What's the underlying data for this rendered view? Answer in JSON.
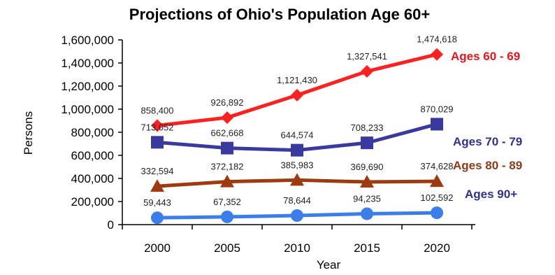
{
  "chart_data": {
    "type": "line",
    "title": "Projections of Ohio's Population Age 60+",
    "xlabel": "Year",
    "ylabel": "Persons",
    "x": [
      2000,
      2005,
      2010,
      2015,
      2020
    ],
    "x_tick_labels": [
      "2000",
      "2005",
      "2010",
      "2015",
      "2020"
    ],
    "ylim": [
      0,
      1600000
    ],
    "y_ticks": [
      0,
      200000,
      400000,
      600000,
      800000,
      1000000,
      1200000,
      1400000,
      1600000
    ],
    "y_tick_labels": [
      "0",
      "200,000",
      "400,000",
      "600,000",
      "800,000",
      "1,000,000",
      "1,200,000",
      "1,400,000",
      "1,600,000"
    ],
    "grid": false,
    "legend": "inline labels at right end of each series",
    "series": [
      {
        "name": "Ages 60 - 69",
        "values": [
          858400,
          926892,
          1121430,
          1327541,
          1474618
        ],
        "data_labels": [
          "858,400",
          "926,892",
          "1,121,430",
          "1,327,541",
          "1,474,618"
        ],
        "color": "#ff2020",
        "label_color": "#e8141e",
        "marker": "diamond"
      },
      {
        "name": "Ages 70 - 79",
        "values": [
          713052,
          662668,
          644574,
          708233,
          870029
        ],
        "data_labels": [
          "713,052",
          "662,668",
          "644,574",
          "708,233",
          "870,029"
        ],
        "color": "#3a3a9e",
        "label_color": "#2e3192",
        "marker": "square"
      },
      {
        "name": "Ages 80 - 89",
        "values": [
          332594,
          372182,
          385983,
          369690,
          374628
        ],
        "data_labels": [
          "332,594",
          "372,182",
          "385,983",
          "369,690",
          "374,628"
        ],
        "color": "#9e3a10",
        "label_color": "#8b3a1a",
        "marker": "triangle"
      },
      {
        "name": "Ages 90+",
        "values": [
          59443,
          67352,
          78644,
          94235,
          102592
        ],
        "data_labels": [
          "59,443",
          "67,352",
          "78,644",
          "94,235",
          "102,592"
        ],
        "color": "#3b7dea",
        "label_color": "#2e3192",
        "marker": "circle"
      }
    ]
  }
}
